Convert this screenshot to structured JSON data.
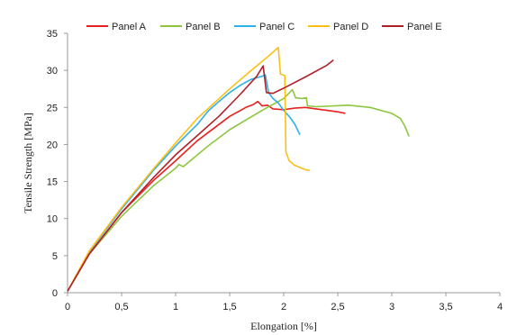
{
  "chart_data": {
    "type": "line",
    "title": "",
    "xlabel": "Elongation [%]",
    "ylabel": "Tensile Strength  [MPa]",
    "xlim": [
      0,
      4
    ],
    "ylim": [
      0,
      35
    ],
    "x_ticks": [
      "0",
      "0,5",
      "1",
      "1,5",
      "2",
      "2,5",
      "3",
      "3,5",
      "4"
    ],
    "x_tick_values": [
      0,
      0.5,
      1,
      1.5,
      2,
      2.5,
      3,
      3.5,
      4
    ],
    "y_ticks": [
      "0",
      "5",
      "10",
      "15",
      "20",
      "25",
      "30",
      "35"
    ],
    "y_tick_values": [
      0,
      5,
      10,
      15,
      20,
      25,
      30,
      35
    ],
    "grid": false,
    "legend_position": "top",
    "series": [
      {
        "name": "Panel A",
        "color": "#e8201f",
        "points": [
          [
            0,
            0.2
          ],
          [
            0.2,
            5.2
          ],
          [
            0.5,
            10.8
          ],
          [
            0.8,
            15.2
          ],
          [
            1.0,
            17.8
          ],
          [
            1.2,
            20.5
          ],
          [
            1.5,
            23.8
          ],
          [
            1.65,
            25.0
          ],
          [
            1.72,
            25.4
          ],
          [
            1.76,
            25.8
          ],
          [
            1.8,
            25.2
          ],
          [
            1.85,
            25.3
          ],
          [
            1.9,
            24.8
          ],
          [
            2.0,
            24.7
          ],
          [
            2.1,
            24.9
          ],
          [
            2.2,
            25.0
          ],
          [
            2.3,
            24.8
          ],
          [
            2.4,
            24.6
          ],
          [
            2.5,
            24.4
          ],
          [
            2.57,
            24.2
          ]
        ]
      },
      {
        "name": "Panel B",
        "color": "#8dc73f",
        "points": [
          [
            0,
            0.2
          ],
          [
            0.2,
            5.2
          ],
          [
            0.5,
            10.3
          ],
          [
            0.8,
            14.5
          ],
          [
            1.0,
            16.8
          ],
          [
            1.03,
            17.3
          ],
          [
            1.07,
            17.0
          ],
          [
            1.3,
            19.8
          ],
          [
            1.5,
            22.0
          ],
          [
            1.8,
            24.6
          ],
          [
            2.0,
            26.2
          ],
          [
            2.08,
            27.4
          ],
          [
            2.11,
            26.3
          ],
          [
            2.17,
            26.2
          ],
          [
            2.21,
            26.3
          ],
          [
            2.22,
            25.2
          ],
          [
            2.3,
            25.1
          ],
          [
            2.6,
            25.3
          ],
          [
            2.8,
            25.0
          ],
          [
            3.0,
            24.2
          ],
          [
            3.08,
            23.5
          ],
          [
            3.12,
            22.5
          ],
          [
            3.16,
            21.1
          ]
        ]
      },
      {
        "name": "Panel C",
        "color": "#2fb0e8",
        "points": [
          [
            0,
            0.2
          ],
          [
            0.2,
            5.5
          ],
          [
            0.5,
            11.3
          ],
          [
            0.8,
            16.6
          ],
          [
            1.0,
            19.8
          ],
          [
            1.2,
            22.7
          ],
          [
            1.3,
            24.5
          ],
          [
            1.4,
            25.8
          ],
          [
            1.5,
            27.0
          ],
          [
            1.6,
            28.0
          ],
          [
            1.7,
            28.8
          ],
          [
            1.8,
            29.2
          ],
          [
            1.83,
            29.4
          ],
          [
            1.86,
            27.0
          ],
          [
            1.9,
            26.2
          ],
          [
            1.95,
            25.6
          ],
          [
            2.0,
            24.6
          ],
          [
            2.05,
            23.8
          ],
          [
            2.1,
            22.8
          ],
          [
            2.15,
            21.3
          ]
        ]
      },
      {
        "name": "Panel D",
        "color": "#fbbf18",
        "points": [
          [
            0,
            0.2
          ],
          [
            0.2,
            5.6
          ],
          [
            0.5,
            11.5
          ],
          [
            0.8,
            16.8
          ],
          [
            1.0,
            20.2
          ],
          [
            1.2,
            23.5
          ],
          [
            1.5,
            27.5
          ],
          [
            1.7,
            30.0
          ],
          [
            1.85,
            31.8
          ],
          [
            1.95,
            33.1
          ],
          [
            1.97,
            29.5
          ],
          [
            2.01,
            29.3
          ],
          [
            2.02,
            19.0
          ],
          [
            2.05,
            17.8
          ],
          [
            2.1,
            17.2
          ],
          [
            2.2,
            16.6
          ],
          [
            2.24,
            16.5
          ]
        ]
      },
      {
        "name": "Panel E",
        "color": "#b0202a",
        "points": [
          [
            0,
            0.2
          ],
          [
            0.2,
            5.2
          ],
          [
            0.5,
            10.8
          ],
          [
            0.8,
            15.6
          ],
          [
            1.0,
            18.6
          ],
          [
            1.2,
            21.2
          ],
          [
            1.4,
            23.8
          ],
          [
            1.6,
            26.8
          ],
          [
            1.75,
            29.2
          ],
          [
            1.81,
            30.6
          ],
          [
            1.84,
            27.0
          ],
          [
            1.9,
            26.9
          ],
          [
            2.0,
            27.6
          ],
          [
            2.2,
            29.1
          ],
          [
            2.4,
            30.7
          ],
          [
            2.46,
            31.4
          ]
        ]
      }
    ]
  }
}
